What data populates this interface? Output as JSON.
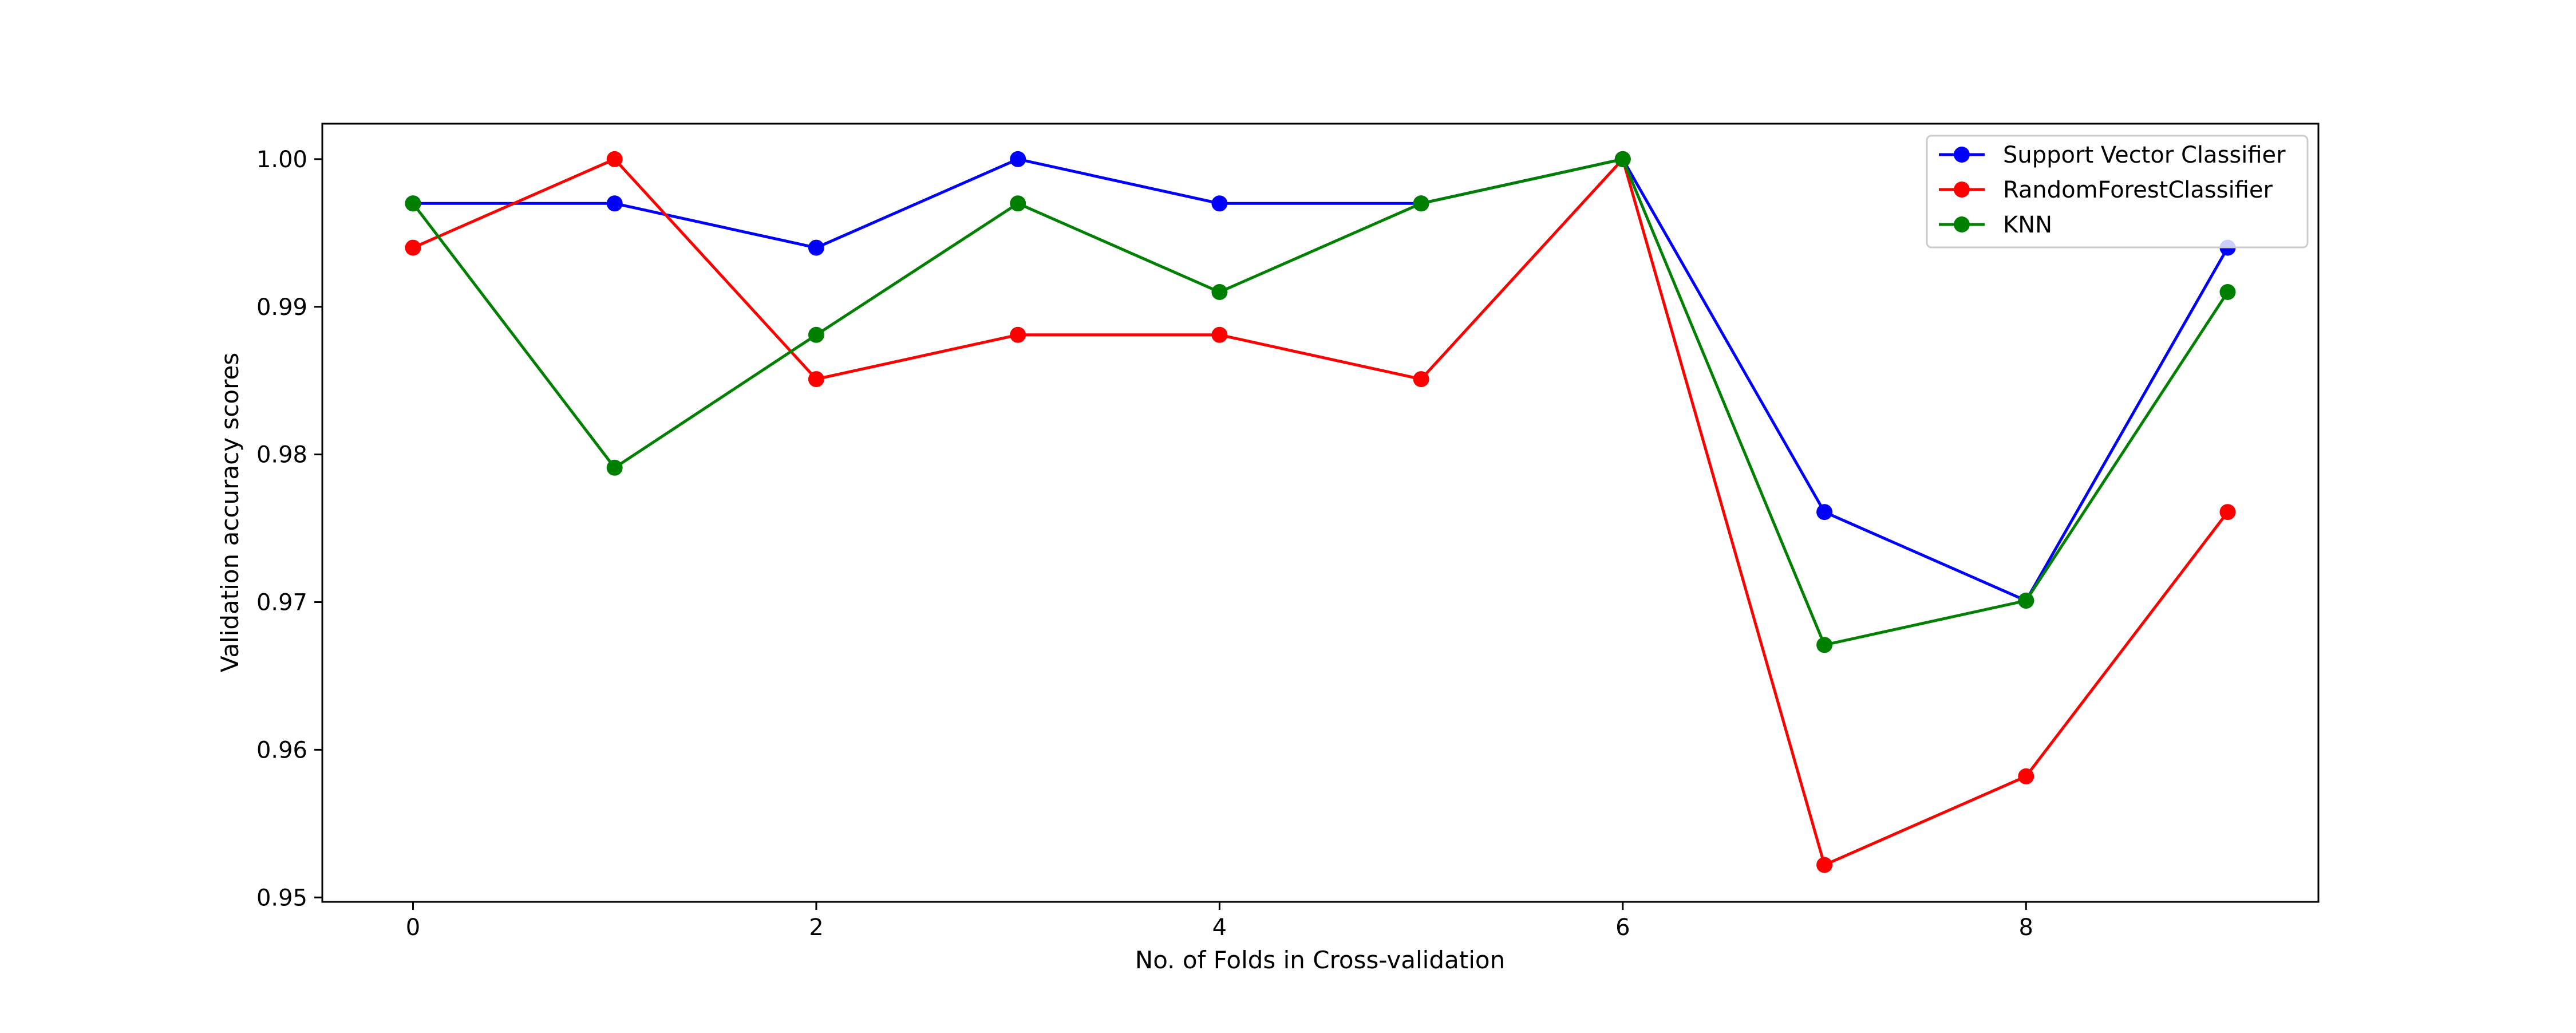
{
  "chart_data": {
    "type": "line",
    "title": "",
    "xlabel": "No. of Folds in Cross-validation",
    "ylabel": "Validation accuracy scores",
    "x": [
      0,
      1,
      2,
      3,
      4,
      5,
      6,
      7,
      8,
      9
    ],
    "xlim": [
      -0.45,
      9.45
    ],
    "ylim": [
      0.9497,
      1.0024
    ],
    "xticks": [
      0,
      2,
      4,
      6,
      8
    ],
    "xtick_labels": [
      "0",
      "2",
      "4",
      "6",
      "8"
    ],
    "yticks": [
      0.95,
      0.96,
      0.97,
      0.98,
      0.99,
      1.0
    ],
    "ytick_labels": [
      "0.95",
      "0.96",
      "0.97",
      "0.98",
      "0.99",
      "1.00"
    ],
    "grid": false,
    "legend_position": "top-right",
    "series": [
      {
        "name": "Support Vector Classifier",
        "color": "#0000ff",
        "marker": "circle",
        "values": [
          0.997,
          0.997,
          0.994,
          1.0,
          0.997,
          0.997,
          1.0,
          0.9761,
          0.9701,
          0.994
        ]
      },
      {
        "name": "RandomForestClassifier",
        "color": "#ff0000",
        "marker": "circle",
        "values": [
          0.994,
          1.0,
          0.9851,
          0.9881,
          0.9881,
          0.9851,
          1.0,
          0.9522,
          0.9582,
          0.9761
        ]
      },
      {
        "name": "KNN",
        "color": "#008000",
        "marker": "circle",
        "values": [
          0.997,
          0.9791,
          0.9881,
          0.997,
          0.991,
          0.997,
          1.0,
          0.9671,
          0.9701,
          0.991
        ]
      }
    ]
  }
}
